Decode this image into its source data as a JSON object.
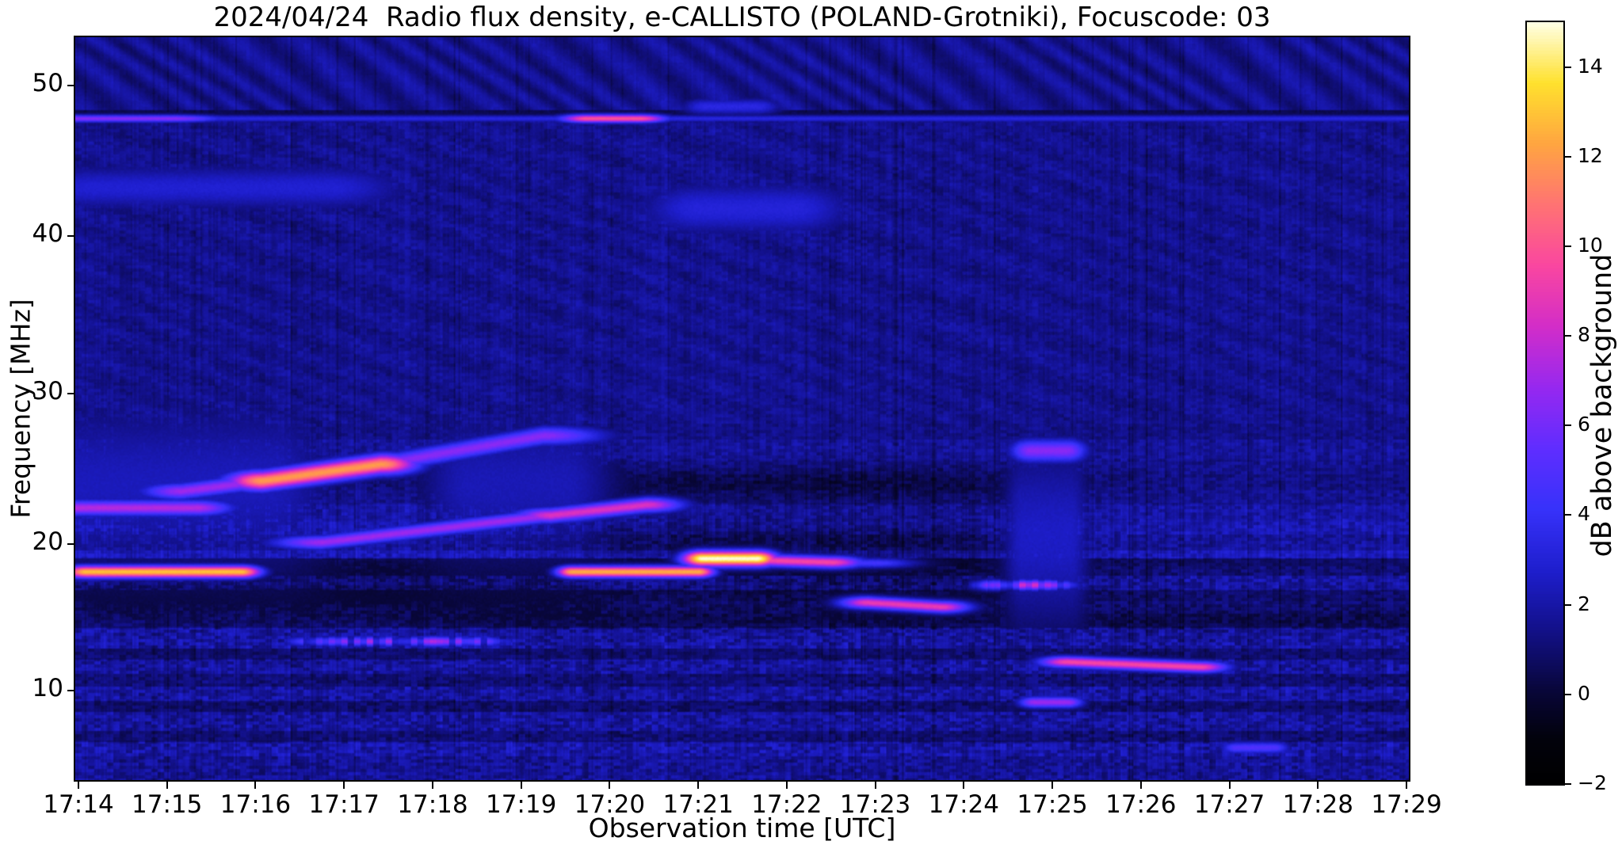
{
  "figure": {
    "title": "2024/04/24  Radio flux density, e-CALLISTO (POLAND-Grotniki), Focuscode: 03",
    "xlabel": "Observation time [UTC]",
    "ylabel": "Frequency [MHz]",
    "colorbar_label": "dB above background"
  },
  "axes": {
    "x_tick_labels": [
      "17:14",
      "17:15",
      "17:16",
      "17:17",
      "17:18",
      "17:19",
      "17:20",
      "17:21",
      "17:22",
      "17:23",
      "17:24",
      "17:25",
      "17:26",
      "17:27",
      "17:28",
      "17:29"
    ],
    "y_tick_values": [
      50,
      40,
      30,
      20,
      10
    ],
    "colorbar_tick_labels": [
      "14",
      "12",
      "10",
      "8",
      "6",
      "4",
      "2",
      "0",
      "−2"
    ]
  },
  "chart_data": {
    "type": "heatmap",
    "title": "2024/04/24  Radio flux density, e-CALLISTO (POLAND-Grotniki), Focuscode: 03",
    "xlabel": "Observation time [UTC]",
    "ylabel": "Frequency [MHz]",
    "x_start_utc": "17:14",
    "x_end_utc": "17:29",
    "x_tick_interval_min": 1,
    "freq_range_mhz": [
      3.9,
      53.2
    ],
    "colorbar_range_db": [
      -2,
      15
    ],
    "colorbar_label": "dB above background",
    "colormap": "black-navy-blue-violet-magenta-pink-orange-yellow-white (gnuplot2-like)",
    "background_db": 1.5,
    "background_texture": "dark blue with vertical stripe noise; wavy moire ripples above 48 MHz; dotted horizontal noise lanes below 18 MHz",
    "features": [
      {
        "label": "rfi-carrier-line",
        "t0": "17:14:00",
        "t1": "17:29:00",
        "f0": 47.8,
        "f1": 47.8,
        "w": 0.17,
        "db": 3.3,
        "edge": 3
      },
      {
        "label": "rfi-brightening-early",
        "t0": "17:14:00",
        "t1": "17:15:05",
        "f0": 47.8,
        "f1": 47.8,
        "w": 0.18,
        "db": 6.5,
        "edge": 25
      },
      {
        "label": "rfi-brightening-peak",
        "t0": "17:19:45",
        "t1": "17:20:20",
        "f0": 47.8,
        "f1": 47.8,
        "w": 0.2,
        "db": 10,
        "edge": 14
      },
      {
        "label": "burst-18MHz-1",
        "t0": "17:14:05",
        "t1": "17:15:50",
        "f0": 18.1,
        "f1": 18.1,
        "w": 0.3,
        "db": 13,
        "edge": 10
      },
      {
        "label": "drift-band-rise",
        "t0": "17:15:10",
        "t1": "17:16:05",
        "f0": 23.5,
        "f1": 24.2,
        "w": 0.4,
        "db": 7,
        "edge": 20
      },
      {
        "label": "drift-band-core",
        "t0": "17:16:05",
        "t1": "17:17:25",
        "f0": 24.2,
        "f1": 25.3,
        "w": 0.48,
        "db": 12,
        "edge": 18
      },
      {
        "label": "drift-band-fade",
        "t0": "17:17:25",
        "t1": "17:19:15",
        "f0": 25.3,
        "f1": 27.2,
        "w": 0.45,
        "db": 6.5,
        "edge": 30
      },
      {
        "label": "band-22.4MHz-start",
        "t0": "17:14:00",
        "t1": "17:15:20",
        "f0": 22.4,
        "f1": 22.4,
        "w": 0.38,
        "db": 7.5,
        "edge": 18
      },
      {
        "label": "rising-band",
        "t0": "17:16:45",
        "t1": "17:19:20",
        "f0": 20.1,
        "f1": 21.9,
        "w": 0.34,
        "db": 7,
        "edge": 25
      },
      {
        "label": "rising-band-end",
        "t0": "17:19:20",
        "t1": "17:20:25",
        "f0": 21.9,
        "f1": 22.6,
        "w": 0.36,
        "db": 8.5,
        "edge": 18
      },
      {
        "label": "burst-18MHz-2",
        "t0": "17:19:35",
        "t1": "17:21:00",
        "f0": 18.1,
        "f1": 18.1,
        "w": 0.28,
        "db": 12.5,
        "edge": 8
      },
      {
        "label": "burst-19MHz-hot",
        "t0": "17:21:03",
        "t1": "17:21:40",
        "f0": 19.0,
        "f1": 19.0,
        "w": 0.38,
        "db": 15,
        "edge": 10
      },
      {
        "label": "burst-19MHz-tail",
        "t0": "17:21:40",
        "t1": "17:22:30",
        "f0": 18.9,
        "f1": 18.75,
        "w": 0.3,
        "db": 9.5,
        "edge": 16
      },
      {
        "label": "burst-19MHz-faint-tail",
        "t0": "17:22:30",
        "t1": "17:23:00",
        "f0": 18.7,
        "f1": 18.7,
        "w": 0.25,
        "db": 4.5,
        "edge": 20
      },
      {
        "label": "streak-15.8MHz",
        "t0": "17:22:55",
        "t1": "17:23:45",
        "f0": 16.0,
        "f1": 15.7,
        "w": 0.3,
        "db": 9,
        "edge": 14
      },
      {
        "label": "streak-17.2MHz",
        "t0": "17:24:25",
        "t1": "17:25:05",
        "f0": 17.2,
        "f1": 17.2,
        "w": 0.26,
        "db": 7,
        "edge": 12,
        "seg": 1
      },
      {
        "label": "streak-11.8MHz",
        "t0": "17:25:10",
        "t1": "17:26:40",
        "f0": 11.95,
        "f1": 11.6,
        "w": 0.28,
        "db": 9.5,
        "edge": 14
      },
      {
        "label": "blob-9.2MHz",
        "t0": "17:24:48",
        "t1": "17:25:10",
        "f0": 9.2,
        "f1": 9.2,
        "w": 0.28,
        "db": 7,
        "edge": 8
      },
      {
        "label": "patch-26MHz",
        "t0": "17:24:45",
        "t1": "17:25:10",
        "f0": 26.2,
        "f1": 26.2,
        "w": 0.55,
        "db": 6.5,
        "edge": 10
      },
      {
        "label": "bright-column-17:25",
        "t0": "17:24:40",
        "t1": "17:25:12",
        "f0": 20.5,
        "f1": 20.5,
        "w": 4.5,
        "db": 2.6,
        "edge": 10
      },
      {
        "label": "cloud-42MHz",
        "t0": "17:21:00",
        "t1": "17:22:05",
        "f0": 41.8,
        "f1": 41.8,
        "w": 1.3,
        "db": 3.1,
        "edge": 30
      },
      {
        "label": "cloud-43MHz-left",
        "t0": "17:14:10",
        "t1": "17:16:50",
        "f0": 43.2,
        "f1": 43.2,
        "w": 1.1,
        "db": 2.9,
        "edge": 40
      },
      {
        "label": "bump-48.6MHz",
        "t0": "17:21:05",
        "t1": "17:21:40",
        "f0": 48.6,
        "f1": 48.6,
        "w": 0.4,
        "db": 3.4,
        "edge": 12
      },
      {
        "label": "segments-13.3MHz",
        "t0": "17:16:50",
        "t1": "17:18:25",
        "f0": 13.35,
        "f1": 13.35,
        "w": 0.25,
        "db": 5.5,
        "edge": 20,
        "seg": 1
      },
      {
        "label": "dots-6MHz",
        "t0": "17:27:05",
        "t1": "17:27:30",
        "f0": 6.1,
        "f1": 6.1,
        "w": 0.3,
        "db": 5,
        "edge": 8
      },
      {
        "label": "bright-columns-start",
        "t0": "17:14:00",
        "t1": "17:16:10",
        "f0": 24.0,
        "f1": 24.0,
        "w": 4.0,
        "db": 2.4,
        "edge": 30
      },
      {
        "label": "bright-columns-17:18",
        "t0": "17:18:25",
        "t1": "17:19:30",
        "f0": 24.0,
        "f1": 24.0,
        "w": 3.5,
        "db": 2.3,
        "edge": 25
      },
      {
        "label": "dark-lane-16.4MHz",
        "t0": "17:14:30",
        "t1": "17:19:00",
        "f0": 16.4,
        "f1": 16.4,
        "w": 0.8,
        "db": -1.3,
        "edge": 40
      },
      {
        "label": "dark-lane-23.9MHz",
        "t0": "17:19:30",
        "t1": "17:23:30",
        "f0": 23.9,
        "f1": 23.9,
        "w": 0.9,
        "db": -1.1,
        "edge": 60
      },
      {
        "label": "dark-lane-20.3MHz",
        "t0": "17:20:40",
        "t1": "17:23:20",
        "f0": 20.3,
        "f1": 20.3,
        "w": 1.0,
        "db": -1.2,
        "edge": 50
      },
      {
        "label": "dark-lane-18.1MHz",
        "t0": "17:15:58",
        "t1": "17:19:28",
        "f0": 18.15,
        "f1": 18.15,
        "w": 0.4,
        "db": -1.0,
        "edge": 15
      },
      {
        "label": "dark-lane-14.9MHz",
        "t0": "17:19:00",
        "t1": "17:29:00",
        "f0": 14.9,
        "f1": 14.9,
        "w": 0.6,
        "db": -0.6,
        "edge": 60
      },
      {
        "label": "dark-post-burst",
        "t0": "17:21:45",
        "t1": "17:24:00",
        "f0": 17.5,
        "f1": 17.5,
        "w": 1.2,
        "db": -0.8,
        "edge": 60
      }
    ]
  }
}
